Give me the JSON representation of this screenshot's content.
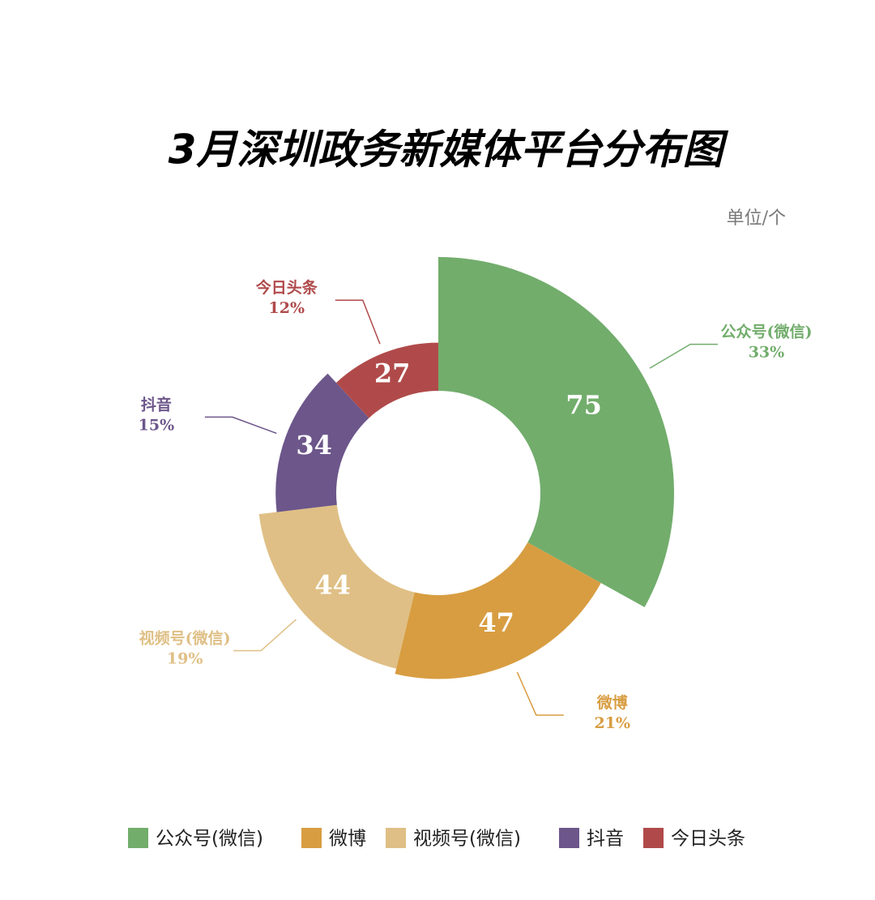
{
  "chart_data": {
    "type": "rose",
    "title": "3月深圳政务新媒体平台分布图",
    "unit_label": "单位/个",
    "categories": [
      "公众号(微信)",
      "微博",
      "视频号(微信)",
      "抖音",
      "今日头条"
    ],
    "values": [
      75,
      47,
      44,
      34,
      27
    ],
    "value_labels": [
      "33%",
      "21%",
      "19%",
      "15%",
      "12%"
    ],
    "colors": [
      "#72ad6c",
      "#d89d41",
      "#dfbf85",
      "#6c568a",
      "#b04a4a"
    ],
    "legend": "bottom"
  }
}
